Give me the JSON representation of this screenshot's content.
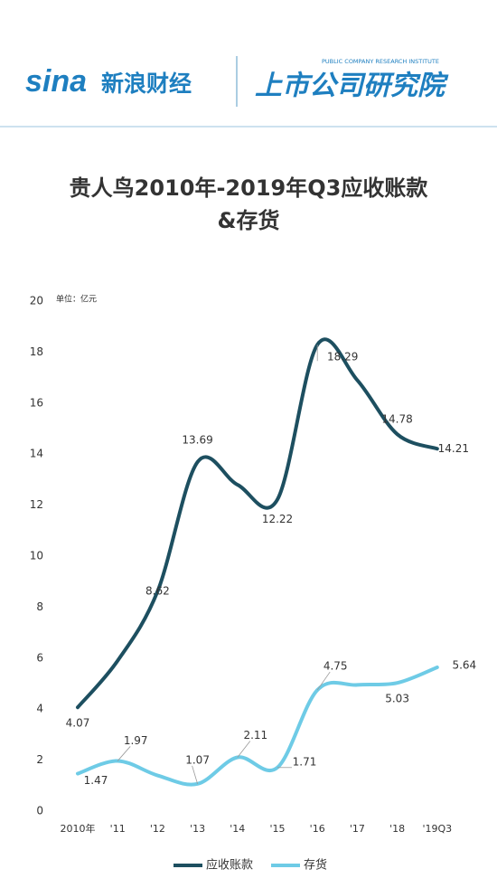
{
  "header": {
    "logo": "sina",
    "brand": "新浪财经",
    "institute": "上市公司研究院",
    "institute_en": "PUBLIC COMPANY RESEARCH INSTITUTE"
  },
  "chart_data": {
    "type": "line",
    "title": "贵人鸟2010年-2019年Q3应收账款&存货",
    "unit": "单位：亿元",
    "categories": [
      "2010年",
      "'11",
      "'12",
      "'13",
      "'14",
      "'15",
      "'16",
      "'17",
      "'18",
      "'19Q3"
    ],
    "series": [
      {
        "name": "应收账款",
        "color": "#1d4f60",
        "values": [
          4.07,
          5.9,
          8.62,
          13.69,
          12.8,
          12.22,
          18.29,
          16.9,
          14.78,
          14.21
        ],
        "value_labels": [
          "4.07",
          null,
          "8.62",
          "13.69",
          null,
          "12.22",
          "18.29",
          null,
          "14.78",
          "14.21"
        ]
      },
      {
        "name": "存货",
        "color": "#6ecbe6",
        "values": [
          1.47,
          1.97,
          1.4,
          1.07,
          2.11,
          1.71,
          4.75,
          4.95,
          5.03,
          5.64
        ],
        "value_labels": [
          "1.47",
          "1.97",
          null,
          "1.07",
          "2.11",
          "1.71",
          "4.75",
          null,
          "5.03",
          "5.64"
        ]
      }
    ],
    "ylim": [
      0,
      20
    ],
    "yticks": [
      0,
      2,
      4,
      6,
      8,
      10,
      12,
      14,
      16,
      18,
      20
    ],
    "grid": false
  }
}
